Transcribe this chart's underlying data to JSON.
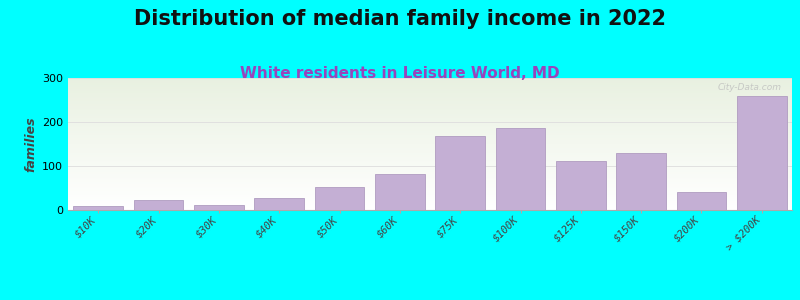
{
  "title": "Distribution of median family income in 2022",
  "subtitle": "White residents in Leisure World, MD",
  "ylabel": "families",
  "background_color": "#00FFFF",
  "plot_bg_color_top": "#e8f0e0",
  "plot_bg_color_bottom": "#ffffff",
  "bar_color": "#c4afd4",
  "bar_edge_color": "#b09cc0",
  "categories": [
    "$10K",
    "$20K",
    "$30K",
    "$40K",
    "$50K",
    "$60K",
    "$75K",
    "$100K",
    "$125K",
    "$150K",
    "$200K",
    "> $200K"
  ],
  "values": [
    10,
    22,
    12,
    28,
    52,
    82,
    168,
    186,
    112,
    130,
    42,
    260
  ],
  "ylim": [
    0,
    300
  ],
  "yticks": [
    0,
    100,
    200,
    300
  ],
  "grid_color": "#dddddd",
  "title_fontsize": 15,
  "subtitle_fontsize": 11,
  "subtitle_color": "#9944bb",
  "ylabel_fontsize": 9,
  "tick_fontsize": 7.5,
  "watermark": "City-Data.com"
}
